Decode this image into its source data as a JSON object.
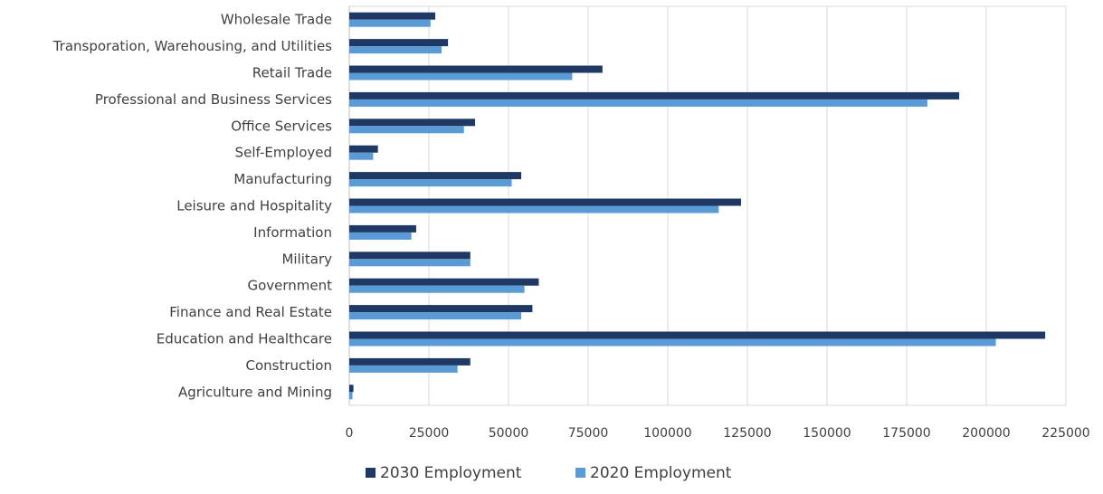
{
  "chart_data": {
    "type": "bar",
    "orientation": "horizontal",
    "categories": [
      "Wholesale Trade",
      "Transporation, Warehousing, and Utilities",
      "Retail Trade",
      "Professional and Business Services",
      "Office Services",
      "Self-Employed",
      "Manufacturing",
      "Leisure and Hospitality",
      "Information",
      "Military",
      "Government",
      "Finance and Real Estate",
      "Education and Healthcare",
      "Construction",
      "Agriculture and Mining"
    ],
    "series": [
      {
        "name": "2030 Employment",
        "color": "#1f3864",
        "values": [
          27000,
          31000,
          79500,
          191500,
          39500,
          9000,
          54000,
          123000,
          21000,
          38000,
          59500,
          57500,
          218500,
          38000,
          1300
        ]
      },
      {
        "name": "2020 Employment",
        "color": "#5b9bd5",
        "values": [
          25500,
          29000,
          70000,
          181500,
          36000,
          7500,
          51000,
          116000,
          19500,
          38000,
          55000,
          54000,
          203000,
          34000,
          1000
        ]
      }
    ],
    "xlim": [
      0,
      225000
    ],
    "x_ticks": [
      "0",
      "25000",
      "50000",
      "75000",
      "100000",
      "125000",
      "150000",
      "175000",
      "200000",
      "225000"
    ],
    "grid": true,
    "legend_position": "bottom",
    "title": "",
    "xlabel": "",
    "ylabel": ""
  }
}
